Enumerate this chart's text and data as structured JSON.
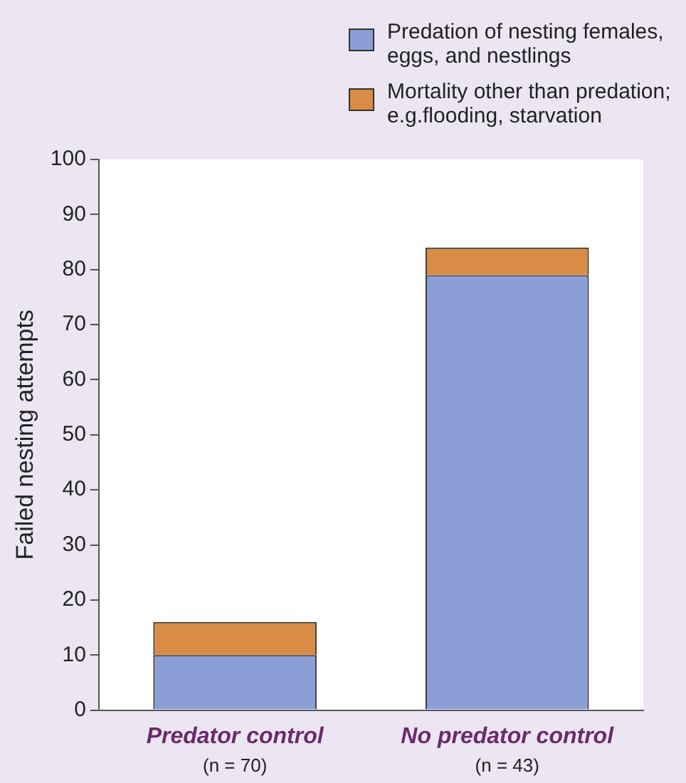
{
  "chart_data": {
    "type": "bar",
    "stacked": true,
    "categories": [
      "Predator control",
      "No predator control"
    ],
    "series": [
      {
        "name": "Predation of nesting females, eggs, and nestlings",
        "color": "#8c9ed6",
        "values": [
          10,
          79
        ]
      },
      {
        "name": "Mortality other than predation; e.g.flooding, starvation",
        "color": "#d98c45",
        "values": [
          6,
          5
        ]
      }
    ],
    "ylabel": "Failed nesting attempts",
    "ylim": [
      0,
      100
    ],
    "yticks": [
      0,
      10,
      20,
      30,
      40,
      50,
      60,
      70,
      80,
      90,
      100
    ],
    "grid": false,
    "legend": "top right",
    "annotations": [
      "(n = 70)",
      "(n = 43)"
    ]
  }
}
